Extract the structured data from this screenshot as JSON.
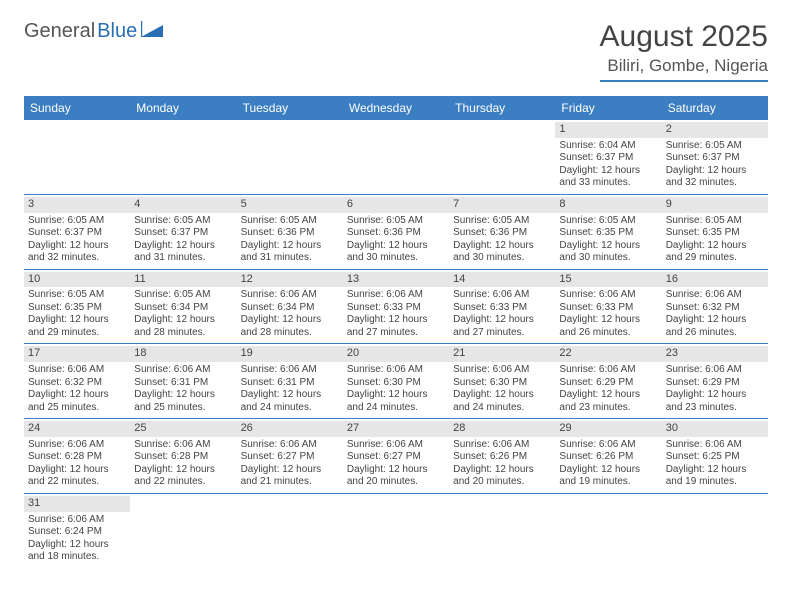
{
  "logo": {
    "general": "General",
    "blue": "Blue"
  },
  "header": {
    "month_title": "August 2025",
    "location": "Biliri, Gombe, Nigeria"
  },
  "colors": {
    "header_bg": "#3b7ec1",
    "header_text": "#ffffff",
    "daynum_bg": "#e6e6e6",
    "border": "#3b7ec1",
    "text": "#444444"
  },
  "day_names": [
    "Sunday",
    "Monday",
    "Tuesday",
    "Wednesday",
    "Thursday",
    "Friday",
    "Saturday"
  ],
  "weeks": [
    [
      {
        "blank": true
      },
      {
        "blank": true
      },
      {
        "blank": true
      },
      {
        "blank": true
      },
      {
        "blank": true
      },
      {
        "day": "1",
        "sunrise": "Sunrise: 6:04 AM",
        "sunset": "Sunset: 6:37 PM",
        "daylight": "Daylight: 12 hours and 33 minutes."
      },
      {
        "day": "2",
        "sunrise": "Sunrise: 6:05 AM",
        "sunset": "Sunset: 6:37 PM",
        "daylight": "Daylight: 12 hours and 32 minutes."
      }
    ],
    [
      {
        "day": "3",
        "sunrise": "Sunrise: 6:05 AM",
        "sunset": "Sunset: 6:37 PM",
        "daylight": "Daylight: 12 hours and 32 minutes."
      },
      {
        "day": "4",
        "sunrise": "Sunrise: 6:05 AM",
        "sunset": "Sunset: 6:37 PM",
        "daylight": "Daylight: 12 hours and 31 minutes."
      },
      {
        "day": "5",
        "sunrise": "Sunrise: 6:05 AM",
        "sunset": "Sunset: 6:36 PM",
        "daylight": "Daylight: 12 hours and 31 minutes."
      },
      {
        "day": "6",
        "sunrise": "Sunrise: 6:05 AM",
        "sunset": "Sunset: 6:36 PM",
        "daylight": "Daylight: 12 hours and 30 minutes."
      },
      {
        "day": "7",
        "sunrise": "Sunrise: 6:05 AM",
        "sunset": "Sunset: 6:36 PM",
        "daylight": "Daylight: 12 hours and 30 minutes."
      },
      {
        "day": "8",
        "sunrise": "Sunrise: 6:05 AM",
        "sunset": "Sunset: 6:35 PM",
        "daylight": "Daylight: 12 hours and 30 minutes."
      },
      {
        "day": "9",
        "sunrise": "Sunrise: 6:05 AM",
        "sunset": "Sunset: 6:35 PM",
        "daylight": "Daylight: 12 hours and 29 minutes."
      }
    ],
    [
      {
        "day": "10",
        "sunrise": "Sunrise: 6:05 AM",
        "sunset": "Sunset: 6:35 PM",
        "daylight": "Daylight: 12 hours and 29 minutes."
      },
      {
        "day": "11",
        "sunrise": "Sunrise: 6:05 AM",
        "sunset": "Sunset: 6:34 PM",
        "daylight": "Daylight: 12 hours and 28 minutes."
      },
      {
        "day": "12",
        "sunrise": "Sunrise: 6:06 AM",
        "sunset": "Sunset: 6:34 PM",
        "daylight": "Daylight: 12 hours and 28 minutes."
      },
      {
        "day": "13",
        "sunrise": "Sunrise: 6:06 AM",
        "sunset": "Sunset: 6:33 PM",
        "daylight": "Daylight: 12 hours and 27 minutes."
      },
      {
        "day": "14",
        "sunrise": "Sunrise: 6:06 AM",
        "sunset": "Sunset: 6:33 PM",
        "daylight": "Daylight: 12 hours and 27 minutes."
      },
      {
        "day": "15",
        "sunrise": "Sunrise: 6:06 AM",
        "sunset": "Sunset: 6:33 PM",
        "daylight": "Daylight: 12 hours and 26 minutes."
      },
      {
        "day": "16",
        "sunrise": "Sunrise: 6:06 AM",
        "sunset": "Sunset: 6:32 PM",
        "daylight": "Daylight: 12 hours and 26 minutes."
      }
    ],
    [
      {
        "day": "17",
        "sunrise": "Sunrise: 6:06 AM",
        "sunset": "Sunset: 6:32 PM",
        "daylight": "Daylight: 12 hours and 25 minutes."
      },
      {
        "day": "18",
        "sunrise": "Sunrise: 6:06 AM",
        "sunset": "Sunset: 6:31 PM",
        "daylight": "Daylight: 12 hours and 25 minutes."
      },
      {
        "day": "19",
        "sunrise": "Sunrise: 6:06 AM",
        "sunset": "Sunset: 6:31 PM",
        "daylight": "Daylight: 12 hours and 24 minutes."
      },
      {
        "day": "20",
        "sunrise": "Sunrise: 6:06 AM",
        "sunset": "Sunset: 6:30 PM",
        "daylight": "Daylight: 12 hours and 24 minutes."
      },
      {
        "day": "21",
        "sunrise": "Sunrise: 6:06 AM",
        "sunset": "Sunset: 6:30 PM",
        "daylight": "Daylight: 12 hours and 24 minutes."
      },
      {
        "day": "22",
        "sunrise": "Sunrise: 6:06 AM",
        "sunset": "Sunset: 6:29 PM",
        "daylight": "Daylight: 12 hours and 23 minutes."
      },
      {
        "day": "23",
        "sunrise": "Sunrise: 6:06 AM",
        "sunset": "Sunset: 6:29 PM",
        "daylight": "Daylight: 12 hours and 23 minutes."
      }
    ],
    [
      {
        "day": "24",
        "sunrise": "Sunrise: 6:06 AM",
        "sunset": "Sunset: 6:28 PM",
        "daylight": "Daylight: 12 hours and 22 minutes."
      },
      {
        "day": "25",
        "sunrise": "Sunrise: 6:06 AM",
        "sunset": "Sunset: 6:28 PM",
        "daylight": "Daylight: 12 hours and 22 minutes."
      },
      {
        "day": "26",
        "sunrise": "Sunrise: 6:06 AM",
        "sunset": "Sunset: 6:27 PM",
        "daylight": "Daylight: 12 hours and 21 minutes."
      },
      {
        "day": "27",
        "sunrise": "Sunrise: 6:06 AM",
        "sunset": "Sunset: 6:27 PM",
        "daylight": "Daylight: 12 hours and 20 minutes."
      },
      {
        "day": "28",
        "sunrise": "Sunrise: 6:06 AM",
        "sunset": "Sunset: 6:26 PM",
        "daylight": "Daylight: 12 hours and 20 minutes."
      },
      {
        "day": "29",
        "sunrise": "Sunrise: 6:06 AM",
        "sunset": "Sunset: 6:26 PM",
        "daylight": "Daylight: 12 hours and 19 minutes."
      },
      {
        "day": "30",
        "sunrise": "Sunrise: 6:06 AM",
        "sunset": "Sunset: 6:25 PM",
        "daylight": "Daylight: 12 hours and 19 minutes."
      }
    ],
    [
      {
        "day": "31",
        "sunrise": "Sunrise: 6:06 AM",
        "sunset": "Sunset: 6:24 PM",
        "daylight": "Daylight: 12 hours and 18 minutes."
      },
      {
        "blank": true
      },
      {
        "blank": true
      },
      {
        "blank": true
      },
      {
        "blank": true
      },
      {
        "blank": true
      },
      {
        "blank": true
      }
    ]
  ]
}
